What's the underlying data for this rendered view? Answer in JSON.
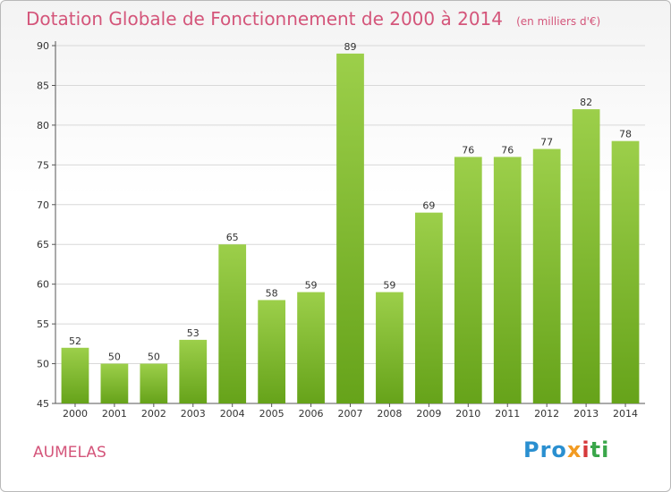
{
  "title": "Dotation Globale de Fonctionnement de 2000 à 2014",
  "unit": "(en milliers d'€)",
  "commune": "AUMELAS",
  "logo": {
    "p1": "Pro",
    "p2": "x",
    "p3": "i",
    "p4": "ti"
  },
  "colors": {
    "bar_top": "#9ccf4a",
    "bar_bottom": "#66a31a",
    "grid": "#d8d8d8",
    "text_accent": "#d4557a"
  },
  "chart_data": {
    "type": "bar",
    "categories": [
      "2000",
      "2001",
      "2002",
      "2003",
      "2004",
      "2005",
      "2006",
      "2007",
      "2008",
      "2009",
      "2010",
      "2011",
      "2012",
      "2013",
      "2014"
    ],
    "values": [
      52,
      50,
      50,
      53,
      65,
      58,
      59,
      89,
      59,
      69,
      76,
      76,
      77,
      82,
      78
    ],
    "ylim": [
      45,
      90
    ],
    "yticks": [
      45,
      50,
      55,
      60,
      65,
      70,
      75,
      80,
      85,
      90
    ],
    "grid": true,
    "xlabel": "",
    "ylabel": ""
  }
}
